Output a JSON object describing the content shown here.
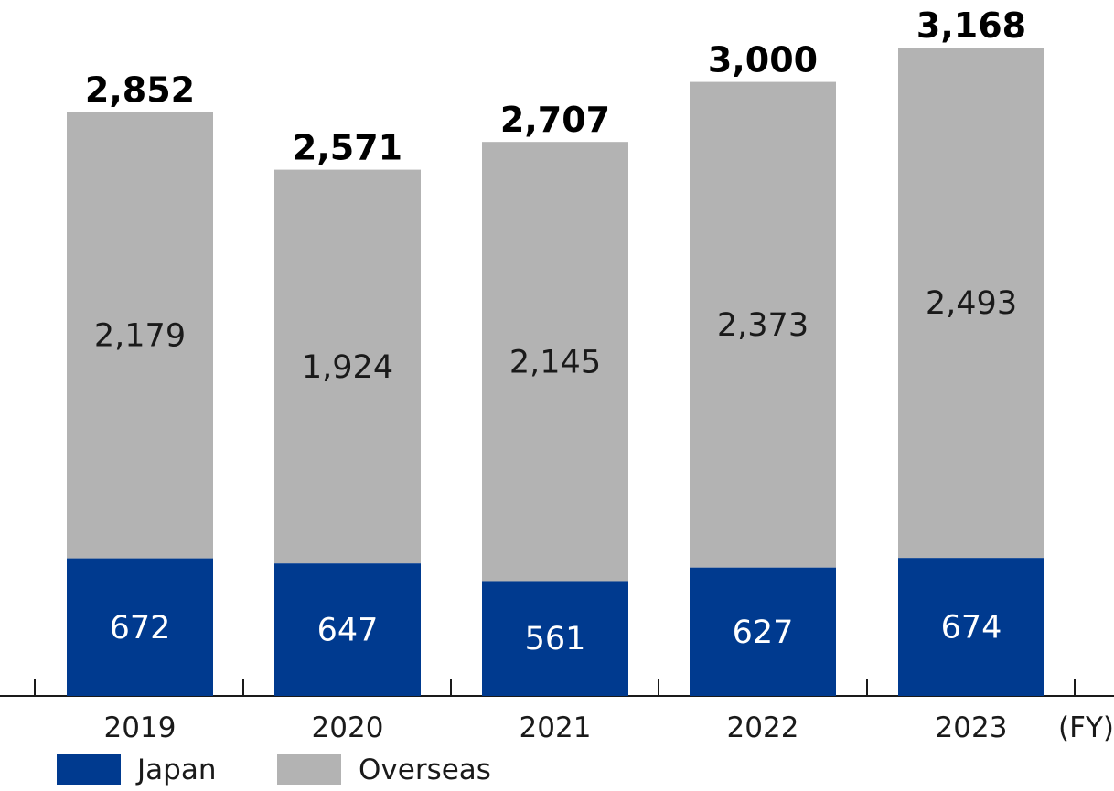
{
  "chart_data": {
    "type": "bar",
    "stacked": true,
    "categories": [
      "2019",
      "2020",
      "2021",
      "2022",
      "2023"
    ],
    "series": [
      {
        "name": "Japan",
        "color": "#003a8f",
        "label_color": "#ffffff",
        "values": [
          672,
          647,
          561,
          627,
          674
        ]
      },
      {
        "name": "Overseas",
        "color": "#b3b3b3",
        "label_color": "#1a1a1a",
        "values": [
          2179,
          1924,
          2145,
          2373,
          2493
        ]
      }
    ],
    "series_labels": {
      "Japan": [
        "672",
        "647",
        "561",
        "627",
        "674"
      ],
      "Overseas": [
        "2,179",
        "1,924",
        "2,145",
        "2,373",
        "2,493"
      ]
    },
    "totals": [
      2852,
      2571,
      2707,
      3000,
      3168
    ],
    "total_labels": [
      "2,852",
      "2,571",
      "2,707",
      "3,000",
      "3,168"
    ],
    "xlabel": "(FY)",
    "ylabel": "",
    "title": "",
    "ylim": [
      0,
      3168
    ],
    "grid": false,
    "legend": "bottom-left"
  }
}
